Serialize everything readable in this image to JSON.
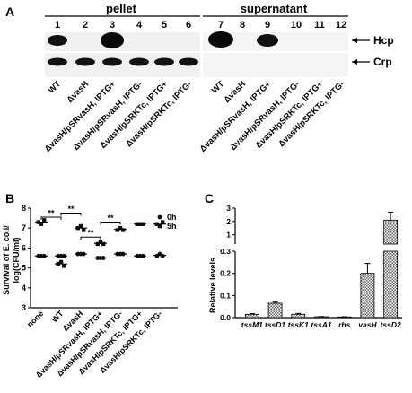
{
  "panel_a": {
    "letter": "A",
    "group_pellet": "pellet",
    "group_supernatant": "supernatant",
    "lanes": [
      "1",
      "2",
      "3",
      "4",
      "5",
      "6",
      "7",
      "8",
      "9",
      "10",
      "11",
      "12"
    ],
    "band_hcp": "Hcp",
    "band_crp": "Crp",
    "samples_left": [
      "WT",
      "ΔvasH",
      "ΔvasH/pSRvasH, IPTG+",
      "ΔvasH/pSRvasH, IPTG-",
      "ΔvasH/pSRKTc, IPTG+",
      "ΔvasH/pSRKTc, IPTG-"
    ],
    "samples_right": [
      "WT",
      "ΔvasH",
      "ΔvasH/pSRvasH, IPTG+",
      "ΔvasH/pSRvasH, IPTG-",
      "ΔvasH/pSRKTc, IPTG+",
      "ΔvasH/pSRKTc, IPTG-"
    ]
  },
  "panel_b": {
    "letter": "B",
    "ylabel_line1": "Survival of E. coli/",
    "ylabel_line2": "log(CFU/ml)",
    "yticks": [
      "8",
      "7",
      "6",
      "5",
      "4",
      "3"
    ],
    "legend": [
      "0h",
      "5h"
    ],
    "categories": [
      "none",
      "WT",
      "ΔvasH",
      "ΔvasH/pSRvasH, IPTG+",
      "ΔvasH/pSRvasH, IPTG-",
      "ΔvasH/pSRKTc, IPTG+",
      "ΔvasH/pSRKTc, IPTG-"
    ],
    "sig": [
      "**",
      "**",
      "**",
      "**"
    ]
  },
  "panel_c": {
    "letter": "C",
    "ylabel": "Relative levels",
    "yticks_top": [
      "3",
      "2",
      "1"
    ],
    "yticks_bottom": [
      "0.3",
      "0.2",
      "0.1",
      "0.0"
    ],
    "categories": [
      "tssM1",
      "tssD1",
      "tssK1",
      "tssA1",
      "rhs",
      "vasH",
      "tssD2"
    ]
  },
  "chart_data": [
    {
      "type": "scatter",
      "categories": [
        "none",
        "WT",
        "ΔvasH",
        "ΔvasH/pSRvasH, IPTG+",
        "ΔvasH/pSRvasH, IPTG-",
        "ΔvasH/pSRKTc, IPTG+",
        "ΔvasH/pSRKTc, IPTG-"
      ],
      "ylim": [
        3,
        8
      ],
      "series": [
        {
          "name": "0h",
          "values": [
            [
              5.6,
              5.6,
              5.6
            ],
            [
              5.6,
              5.6,
              5.6
            ],
            [
              5.7,
              5.7,
              5.7
            ],
            [
              5.5,
              5.5,
              5.5
            ],
            [
              5.7,
              5.7,
              5.7
            ],
            [
              5.6,
              5.6,
              5.6
            ],
            [
              5.6,
              5.7,
              5.6
            ]
          ]
        },
        {
          "name": "5h",
          "values": [
            [
              7.3,
              7.2,
              7.4
            ],
            [
              5.2,
              5.3,
              5.1
            ],
            [
              7.0,
              7.1,
              6.9
            ],
            [
              6.2,
              6.3,
              6.2
            ],
            [
              6.9,
              7.0,
              6.9
            ],
            [
              7.2,
              7.2,
              7.2
            ],
            [
              7.2,
              7.1,
              7.3
            ]
          ]
        }
      ]
    },
    {
      "type": "bar",
      "categories": [
        "tssM1",
        "tssD1",
        "tssK1",
        "tssA1",
        "rhs",
        "vasH",
        "tssD2"
      ],
      "values": [
        0.015,
        0.065,
        0.015,
        0.004,
        0.003,
        0.2,
        2.1
      ],
      "errors": [
        0.003,
        0.005,
        0.004,
        0.001,
        0.001,
        0.045,
        0.6
      ],
      "ylim_lower": [
        0,
        0.3
      ],
      "ylim_upper": [
        0.3,
        3
      ]
    }
  ]
}
